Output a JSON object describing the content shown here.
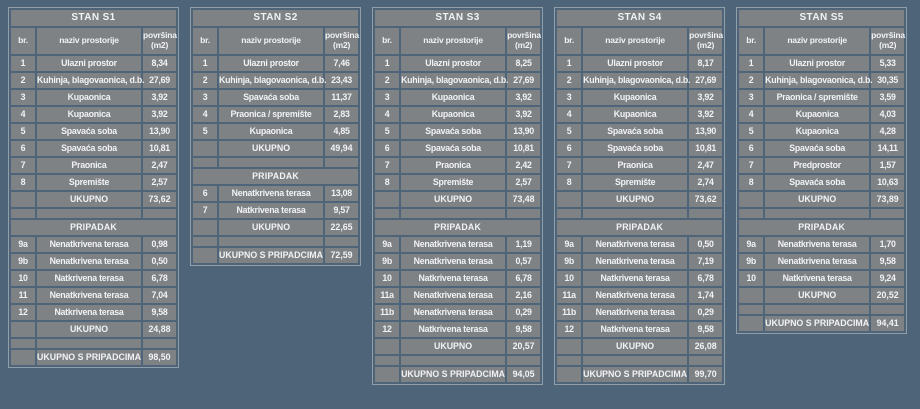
{
  "palette": {
    "background": "#4e6478",
    "cell": "#7f8285",
    "text": "#f1f2f4",
    "frame": "#d2d7dc"
  },
  "columns": {
    "br": "br.",
    "naziv": "naziv prostorije",
    "povrsina": "površina\n(m2)"
  },
  "labels": {
    "ukupno": "UKUPNO",
    "pripadak": "PRIPADAK",
    "ukupno_s_pripadcima": "UKUPNO S PRIPADCIMA"
  },
  "tables": [
    {
      "title": "STAN S1",
      "rooms": [
        {
          "br": "1",
          "name": "Ulazni prostor",
          "area": "8,34"
        },
        {
          "br": "2",
          "name": "Kuhinja, blagovaonica, d.b.",
          "area": "27,69"
        },
        {
          "br": "3",
          "name": "Kupaonica",
          "area": "3,92"
        },
        {
          "br": "4",
          "name": "Kupaonica",
          "area": "3,92"
        },
        {
          "br": "5",
          "name": "Spavaća soba",
          "area": "13,90"
        },
        {
          "br": "6",
          "name": "Spavaća soba",
          "area": "10,81"
        },
        {
          "br": "7",
          "name": "Praonica",
          "area": "2,47"
        },
        {
          "br": "8",
          "name": "Spremište",
          "area": "2,57"
        }
      ],
      "rooms_total": "73,62",
      "pripadak": [
        {
          "br": "9a",
          "name": "Nenatkrivena terasa",
          "area": "0,98"
        },
        {
          "br": "9b",
          "name": "Nenatkrivena terasa",
          "area": "0,50"
        },
        {
          "br": "10",
          "name": "Natkrivena terasa",
          "area": "6,78"
        },
        {
          "br": "11",
          "name": "Nenatkrivena terasa",
          "area": "7,04"
        },
        {
          "br": "12",
          "name": "Natkrivena terasa",
          "area": "9,58"
        }
      ],
      "pripadak_total": "24,88",
      "grand_total": "98,50"
    },
    {
      "title": "STAN S2",
      "rooms": [
        {
          "br": "1",
          "name": "Ulazni prostor",
          "area": "7,46"
        },
        {
          "br": "2",
          "name": "Kuhinja, blagovaonica, d.b.",
          "area": "23,43"
        },
        {
          "br": "3",
          "name": "Spavaća soba",
          "area": "11,37"
        },
        {
          "br": "4",
          "name": "Praonica / spremište",
          "area": "2,83"
        },
        {
          "br": "5",
          "name": "Kupaonica",
          "area": "4,85"
        }
      ],
      "rooms_total": "49,94",
      "pripadak": [
        {
          "br": "6",
          "name": "Nenatkrivena terasa",
          "area": "13,08"
        },
        {
          "br": "7",
          "name": "Natkrivena terasa",
          "area": "9,57"
        }
      ],
      "pripadak_total": "22,65",
      "grand_total": "72,59"
    },
    {
      "title": "STAN S3",
      "rooms": [
        {
          "br": "1",
          "name": "Ulazni prostor",
          "area": "8,25"
        },
        {
          "br": "2",
          "name": "Kuhinja, blagovaonica, d.b.",
          "area": "27,69"
        },
        {
          "br": "3",
          "name": "Kupaonica",
          "area": "3,92"
        },
        {
          "br": "4",
          "name": "Kupaonica",
          "area": "3,92"
        },
        {
          "br": "5",
          "name": "Spavaća soba",
          "area": "13,90"
        },
        {
          "br": "6",
          "name": "Spavaća soba",
          "area": "10,81"
        },
        {
          "br": "7",
          "name": "Praonica",
          "area": "2,42"
        },
        {
          "br": "8",
          "name": "Spremište",
          "area": "2,57"
        }
      ],
      "rooms_total": "73,48",
      "pripadak": [
        {
          "br": "9a",
          "name": "Nenatkrivena terasa",
          "area": "1,19"
        },
        {
          "br": "9b",
          "name": "Nenatkrivena terasa",
          "area": "0,57"
        },
        {
          "br": "10",
          "name": "Natkrivena terasa",
          "area": "6,78"
        },
        {
          "br": "11a",
          "name": "Nenatkrivena terasa",
          "area": "2,16"
        },
        {
          "br": "11b",
          "name": "Nenatkrivena terasa",
          "area": "0,29"
        },
        {
          "br": "12",
          "name": "Natkrivena terasa",
          "area": "9,58"
        }
      ],
      "pripadak_total": "20,57",
      "grand_total": "94,05"
    },
    {
      "title": "STAN S4",
      "rooms": [
        {
          "br": "1",
          "name": "Ulazni prostor",
          "area": "8,17"
        },
        {
          "br": "2",
          "name": "Kuhinja, blagovaonica, d.b.",
          "area": "27,69"
        },
        {
          "br": "3",
          "name": "Kupaonica",
          "area": "3,92"
        },
        {
          "br": "4",
          "name": "Kupaonica",
          "area": "3,92"
        },
        {
          "br": "5",
          "name": "Spavaća soba",
          "area": "13,90"
        },
        {
          "br": "6",
          "name": "Spavaća soba",
          "area": "10,81"
        },
        {
          "br": "7",
          "name": "Praonica",
          "area": "2,47"
        },
        {
          "br": "8",
          "name": "Spremište",
          "area": "2,74"
        }
      ],
      "rooms_total": "73,62",
      "pripadak": [
        {
          "br": "9a",
          "name": "Nenatkrivena terasa",
          "area": "0,50"
        },
        {
          "br": "9b",
          "name": "Nenatkrivena terasa",
          "area": "7,19"
        },
        {
          "br": "10",
          "name": "Natkrivena terasa",
          "area": "6,78"
        },
        {
          "br": "11a",
          "name": "Nenatkrivena terasa",
          "area": "1,74"
        },
        {
          "br": "11b",
          "name": "Nenatkrivena terasa",
          "area": "0,29"
        },
        {
          "br": "12",
          "name": "Natkrivena terasa",
          "area": "9,58"
        }
      ],
      "pripadak_total": "26,08",
      "grand_total": "99,70"
    },
    {
      "title": "STAN S5",
      "rooms": [
        {
          "br": "1",
          "name": "Ulazni prostor",
          "area": "5,33"
        },
        {
          "br": "2",
          "name": "Kuhinja, blagovaonica, d.b.",
          "area": "30,35"
        },
        {
          "br": "3",
          "name": "Praonica / spremište",
          "area": "3,59"
        },
        {
          "br": "4",
          "name": "Kupaonica",
          "area": "4,03"
        },
        {
          "br": "5",
          "name": "Kupaonica",
          "area": "4,28"
        },
        {
          "br": "6",
          "name": "Spavaća soba",
          "area": "14,11"
        },
        {
          "br": "7",
          "name": "Predprostor",
          "area": "1,57"
        },
        {
          "br": "8",
          "name": "Spavaća soba",
          "area": "10,63"
        }
      ],
      "rooms_total": "73,89",
      "pripadak": [
        {
          "br": "9a",
          "name": "Nenatkrivena terasa",
          "area": "1,70"
        },
        {
          "br": "9b",
          "name": "Nenatkrivena terasa",
          "area": "9,58"
        },
        {
          "br": "10",
          "name": "Natkrivena terasa",
          "area": "9,24"
        }
      ],
      "pripadak_total": "20,52",
      "grand_total": "94,41"
    }
  ]
}
